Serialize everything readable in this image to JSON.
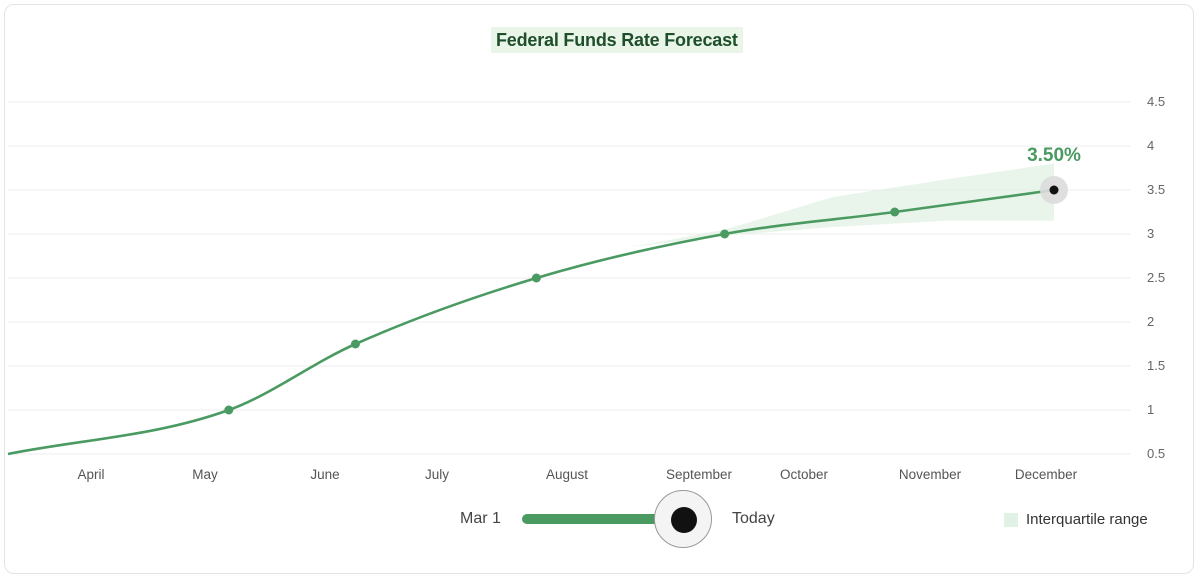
{
  "chart_data": {
    "type": "line",
    "title": "Federal Funds Rate Forecast",
    "x_tick_labels": [
      "April",
      "May",
      "June",
      "July",
      "August",
      "September",
      "October",
      "November",
      "December"
    ],
    "y_ticks": [
      0.5,
      1,
      1.5,
      2,
      2.5,
      3,
      3.5,
      4,
      4.5
    ],
    "ylim": [
      0.5,
      4.5
    ],
    "series": [
      {
        "values": [
          {
            "x": "2025-03-01",
            "y": 0.5
          },
          {
            "x": "2025-05-01",
            "y": 1.0
          },
          {
            "x": "2025-06-05",
            "y": 1.75
          },
          {
            "x": "2025-07-25",
            "y": 2.5
          },
          {
            "x": "2025-09-15",
            "y": 3.0
          },
          {
            "x": "2025-11-01",
            "y": 3.25
          },
          {
            "x": "2025-12-15",
            "y": 3.5
          }
        ],
        "color": "#4a9a62"
      }
    ],
    "interquartile_range": [
      {
        "x": "2025-08-20",
        "low": 2.85,
        "high": 2.85
      },
      {
        "x": "2025-09-15",
        "low": 2.98,
        "high": 3.05
      },
      {
        "x": "2025-10-15",
        "low": 3.08,
        "high": 3.42
      },
      {
        "x": "2025-11-15",
        "low": 3.15,
        "high": 3.62
      },
      {
        "x": "2025-12-15",
        "low": 3.15,
        "high": 3.8
      }
    ],
    "highlight": {
      "x": "2025-12-15",
      "y": 3.5,
      "label": "3.50%"
    },
    "grid": true,
    "legend_position": "bottom-right"
  },
  "slider": {
    "start_label": "Mar 1",
    "end_label": "Today",
    "progress": 0.86
  },
  "legend": {
    "label": "Interquartile range",
    "swatch_color": "#e1f1e3"
  },
  "colors": {
    "line": "#4a9a62",
    "band": "#e1f1e3",
    "title_bg": "#eaf5ea",
    "title_text": "#1f4f2a"
  }
}
